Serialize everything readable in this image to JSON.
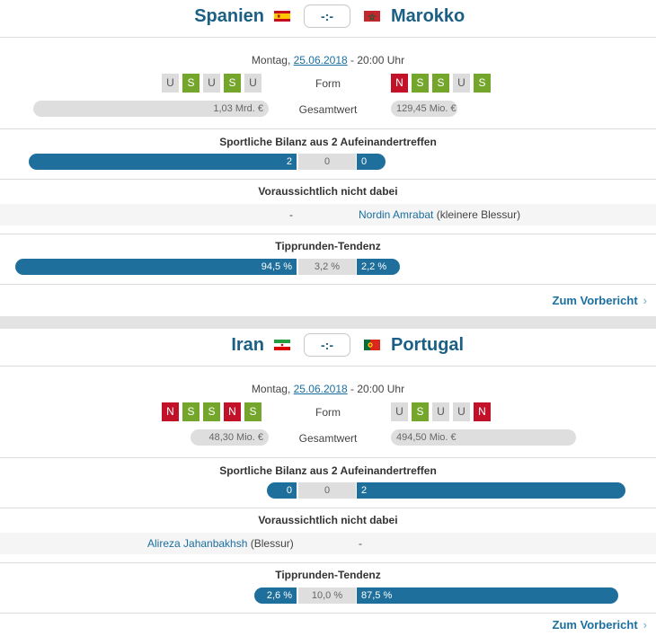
{
  "matches": [
    {
      "home": "Spanien",
      "away": "Marokko",
      "score": "-:-",
      "weekday": "Montag,",
      "date": "25.06.2018",
      "time": "-  20:00 Uhr",
      "form_label": "Form",
      "home_form": [
        "U",
        "S",
        "U",
        "S",
        "U"
      ],
      "away_form": [
        "N",
        "S",
        "S",
        "U",
        "S"
      ],
      "value_label": "Gesamtwert",
      "home_value": "1,03 Mrd. €",
      "away_value": "129,45 Mio. €",
      "h2h_title": "Sportliche Bilanz aus 2 Aufeinandertreffen",
      "h2h": {
        "home": "2",
        "draw": "0",
        "away": "0"
      },
      "absent_title": "Voraussichtlich nicht dabei",
      "home_absent": "-",
      "away_absent_name": "Nordin Amrabat",
      "away_absent_reason": "(kleinere Blessur)",
      "tip_title": "Tipprunden-Tendenz",
      "tip": {
        "home": "94,5 %",
        "draw": "3,2 %",
        "away": "2,2 %"
      },
      "more": "Zum Vorbericht"
    },
    {
      "home": "Iran",
      "away": "Portugal",
      "score": "-:-",
      "weekday": "Montag,",
      "date": "25.06.2018",
      "time": "-  20:00 Uhr",
      "form_label": "Form",
      "home_form": [
        "N",
        "S",
        "S",
        "N",
        "S"
      ],
      "away_form": [
        "U",
        "S",
        "U",
        "U",
        "N"
      ],
      "value_label": "Gesamtwert",
      "home_value": "48,30 Mio. €",
      "away_value": "494,50 Mio. €",
      "h2h_title": "Sportliche Bilanz aus 2 Aufeinandertreffen",
      "h2h": {
        "home": "0",
        "draw": "0",
        "away": "2"
      },
      "absent_title": "Voraussichtlich nicht dabei",
      "home_absent_name": "Alireza Jahanbakhsh",
      "home_absent_reason": "(Blessur)",
      "away_absent": "-",
      "tip_title": "Tipprunden-Tendenz",
      "tip": {
        "home": "2,6 %",
        "draw": "10,0 %",
        "away": "87,5 %"
      },
      "more": "Zum Vorbericht"
    }
  ]
}
